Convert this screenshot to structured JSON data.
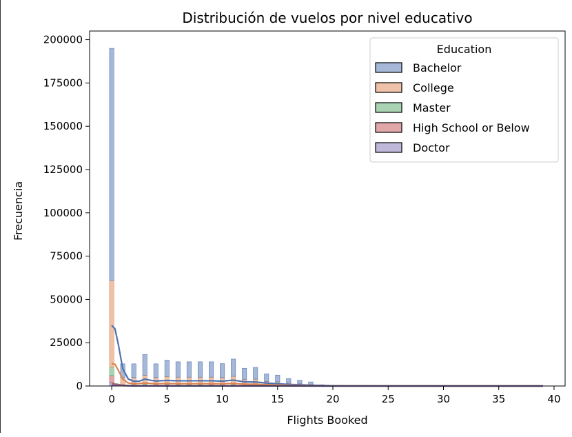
{
  "chart_data": {
    "type": "histogram",
    "title": "Distribución de vuelos por nivel educativo",
    "xlabel": "Flights Booked",
    "ylabel": "Frecuencia",
    "xlim": [
      -2,
      41
    ],
    "ylim": [
      0,
      205000
    ],
    "xticks": [
      0,
      5,
      10,
      15,
      20,
      25,
      30,
      35,
      40
    ],
    "yticks": [
      0,
      25000,
      50000,
      75000,
      100000,
      125000,
      150000,
      175000,
      200000
    ],
    "grid": false,
    "legend": {
      "title": "Education",
      "placement": "top-right"
    },
    "stacked": true,
    "bin_width": 0.4,
    "x": [
      0,
      1,
      2,
      3,
      4,
      5,
      6,
      7,
      8,
      9,
      10,
      11,
      12,
      13,
      14,
      15,
      16,
      17,
      18,
      19,
      20,
      21,
      22,
      23,
      24,
      25,
      26,
      27,
      28,
      29,
      30,
      31,
      32,
      33,
      34,
      35,
      36,
      37,
      38,
      39
    ],
    "series": [
      {
        "name": "Doctor",
        "color": "#8172b3",
        "values": [
          2000,
          150,
          150,
          200,
          150,
          180,
          170,
          170,
          170,
          170,
          160,
          180,
          130,
          130,
          90,
          80,
          50,
          40,
          30,
          10,
          5,
          3,
          2,
          2,
          1,
          1,
          1,
          1,
          1,
          1,
          1,
          1,
          1,
          1,
          1,
          1,
          1,
          1,
          1,
          1
        ]
      },
      {
        "name": "High School or Below",
        "color": "#c44e52",
        "values": [
          4000,
          350,
          350,
          450,
          350,
          400,
          380,
          380,
          380,
          380,
          360,
          400,
          300,
          300,
          200,
          180,
          120,
          90,
          60,
          20,
          8,
          5,
          3,
          2,
          2,
          1,
          1,
          1,
          1,
          1,
          1,
          1,
          1,
          1,
          1,
          1,
          1,
          1,
          1,
          1
        ]
      },
      {
        "name": "Master",
        "color": "#55a868",
        "values": [
          5000,
          400,
          400,
          550,
          400,
          450,
          430,
          430,
          430,
          430,
          400,
          460,
          320,
          330,
          220,
          200,
          140,
          100,
          70,
          20,
          8,
          5,
          3,
          2,
          2,
          1,
          1,
          1,
          1,
          1,
          1,
          1,
          1,
          1,
          1,
          1,
          1,
          1,
          1,
          1
        ]
      },
      {
        "name": "College",
        "color": "#dd8452",
        "values": [
          50000,
          3900,
          3900,
          5000,
          3900,
          4400,
          4100,
          4100,
          4100,
          4100,
          3900,
          4500,
          3100,
          3200,
          2100,
          1900,
          1300,
          1000,
          700,
          200,
          80,
          40,
          20,
          15,
          12,
          10,
          8,
          6,
          5,
          5,
          4,
          4,
          3,
          3,
          3,
          2,
          2,
          2,
          2,
          2
        ]
      },
      {
        "name": "Bachelor",
        "color": "#4c72b0",
        "values": [
          134000,
          8000,
          8000,
          12000,
          8000,
          9500,
          8900,
          8900,
          8900,
          8900,
          8100,
          10000,
          6400,
          6800,
          4400,
          3900,
          2700,
          2100,
          1500,
          500,
          150,
          80,
          50,
          40,
          30,
          25,
          20,
          18,
          15,
          12,
          10,
          9,
          8,
          7,
          6,
          6,
          5,
          5,
          5,
          5
        ]
      }
    ],
    "kde": [
      {
        "name": "Bachelor",
        "color": "#4c72b0",
        "points": [
          [
            0,
            35000
          ],
          [
            0.3,
            33000
          ],
          [
            0.6,
            24000
          ],
          [
            1,
            10000
          ],
          [
            1.5,
            4000
          ],
          [
            2,
            2700
          ],
          [
            2.5,
            2800
          ],
          [
            3,
            4000
          ],
          [
            3.5,
            3300
          ],
          [
            4,
            2900
          ],
          [
            5,
            3200
          ],
          [
            6,
            3000
          ],
          [
            7,
            3000
          ],
          [
            8,
            3000
          ],
          [
            9,
            3000
          ],
          [
            10,
            2800
          ],
          [
            11,
            3400
          ],
          [
            12,
            2400
          ],
          [
            13,
            2300
          ],
          [
            14,
            1700
          ],
          [
            15,
            1300
          ],
          [
            16,
            900
          ],
          [
            17,
            700
          ],
          [
            18,
            500
          ],
          [
            19,
            300
          ],
          [
            20,
            150
          ],
          [
            22,
            60
          ],
          [
            25,
            25
          ],
          [
            30,
            10
          ],
          [
            35,
            5
          ],
          [
            39,
            3
          ]
        ]
      },
      {
        "name": "College",
        "color": "#dd8452",
        "points": [
          [
            0,
            13000
          ],
          [
            0.3,
            12500
          ],
          [
            0.6,
            9000
          ],
          [
            1,
            4000
          ],
          [
            1.5,
            1700
          ],
          [
            2,
            1300
          ],
          [
            2.5,
            1400
          ],
          [
            3,
            1800
          ],
          [
            3.5,
            1500
          ],
          [
            4,
            1300
          ],
          [
            5,
            1450
          ],
          [
            6,
            1350
          ],
          [
            7,
            1350
          ],
          [
            8,
            1350
          ],
          [
            9,
            1350
          ],
          [
            10,
            1300
          ],
          [
            11,
            1500
          ],
          [
            12,
            1100
          ],
          [
            13,
            1050
          ],
          [
            14,
            750
          ],
          [
            15,
            600
          ],
          [
            16,
            400
          ],
          [
            17,
            300
          ],
          [
            18,
            220
          ],
          [
            19,
            120
          ],
          [
            20,
            60
          ],
          [
            22,
            25
          ],
          [
            25,
            10
          ],
          [
            30,
            4
          ],
          [
            35,
            2
          ],
          [
            39,
            1
          ]
        ]
      },
      {
        "name": "Master",
        "color": "#55a868",
        "points": [
          [
            0,
            1300
          ],
          [
            0.5,
            1000
          ],
          [
            1,
            400
          ],
          [
            2,
            150
          ],
          [
            3,
            180
          ],
          [
            5,
            160
          ],
          [
            8,
            150
          ],
          [
            11,
            160
          ],
          [
            13,
            120
          ],
          [
            15,
            70
          ],
          [
            18,
            25
          ],
          [
            20,
            8
          ],
          [
            25,
            2
          ],
          [
            39,
            0
          ]
        ]
      },
      {
        "name": "High School or Below",
        "color": "#c44e52",
        "points": [
          [
            0,
            1100
          ],
          [
            0.5,
            850
          ],
          [
            1,
            350
          ],
          [
            2,
            130
          ],
          [
            3,
            160
          ],
          [
            5,
            140
          ],
          [
            8,
            130
          ],
          [
            11,
            140
          ],
          [
            13,
            100
          ],
          [
            15,
            60
          ],
          [
            18,
            20
          ],
          [
            20,
            6
          ],
          [
            25,
            2
          ],
          [
            39,
            0
          ]
        ]
      },
      {
        "name": "Doctor",
        "color": "#8172b3",
        "points": [
          [
            0,
            550
          ],
          [
            0.5,
            420
          ],
          [
            1,
            170
          ],
          [
            2,
            60
          ],
          [
            3,
            75
          ],
          [
            5,
            65
          ],
          [
            8,
            60
          ],
          [
            11,
            65
          ],
          [
            13,
            45
          ],
          [
            15,
            30
          ],
          [
            18,
            10
          ],
          [
            20,
            3
          ],
          [
            25,
            1
          ],
          [
            39,
            0
          ]
        ]
      }
    ],
    "legend_order": [
      "Bachelor",
      "College",
      "Master",
      "High School or Below",
      "Doctor"
    ]
  }
}
